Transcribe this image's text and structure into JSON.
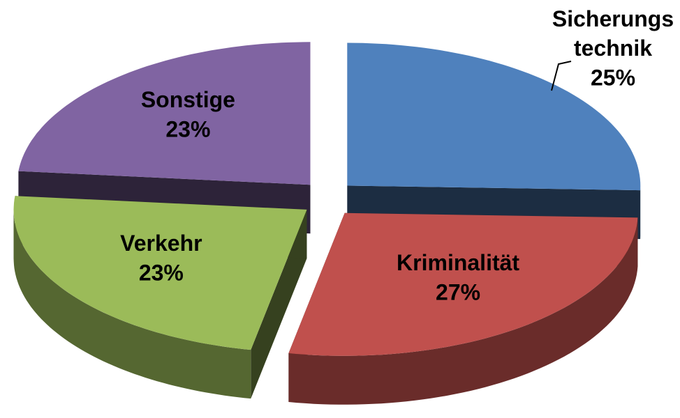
{
  "chart_data": {
    "type": "pie",
    "categories": [
      "Sicherungs\ntechnik",
      "Kriminalität",
      "Verkehr",
      "Sonstige"
    ],
    "values": [
      25,
      27,
      23,
      23
    ],
    "value_labels": [
      "25%",
      "27%",
      "23%",
      "23%"
    ],
    "colors": [
      "#4f81bd",
      "#c0504d",
      "#9bbb59",
      "#8064a2"
    ]
  }
}
